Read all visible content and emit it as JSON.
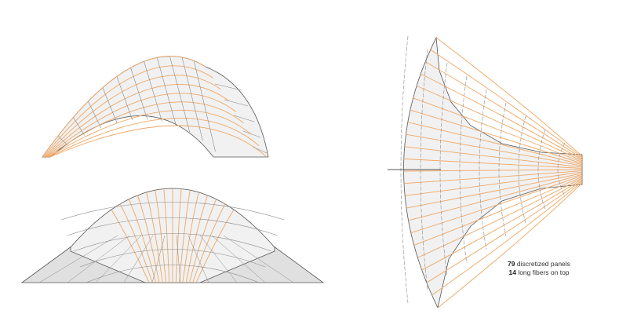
{
  "colors": {
    "panel_fill": "#f1f1f1",
    "panel_fill_shaded": "#e0e0e0",
    "panel_edge": "#8a8a8a",
    "fiber": "#f0a764",
    "outline": "#555555"
  },
  "figures": [
    {
      "view": "side-elevation-arch"
    },
    {
      "view": "front-elevation-dome"
    },
    {
      "view": "plan-fan"
    }
  ],
  "caption": {
    "panels_count": "79",
    "panels_label": "discretized panels",
    "fibers_count": "14",
    "fibers_label": "long fibers on top"
  }
}
